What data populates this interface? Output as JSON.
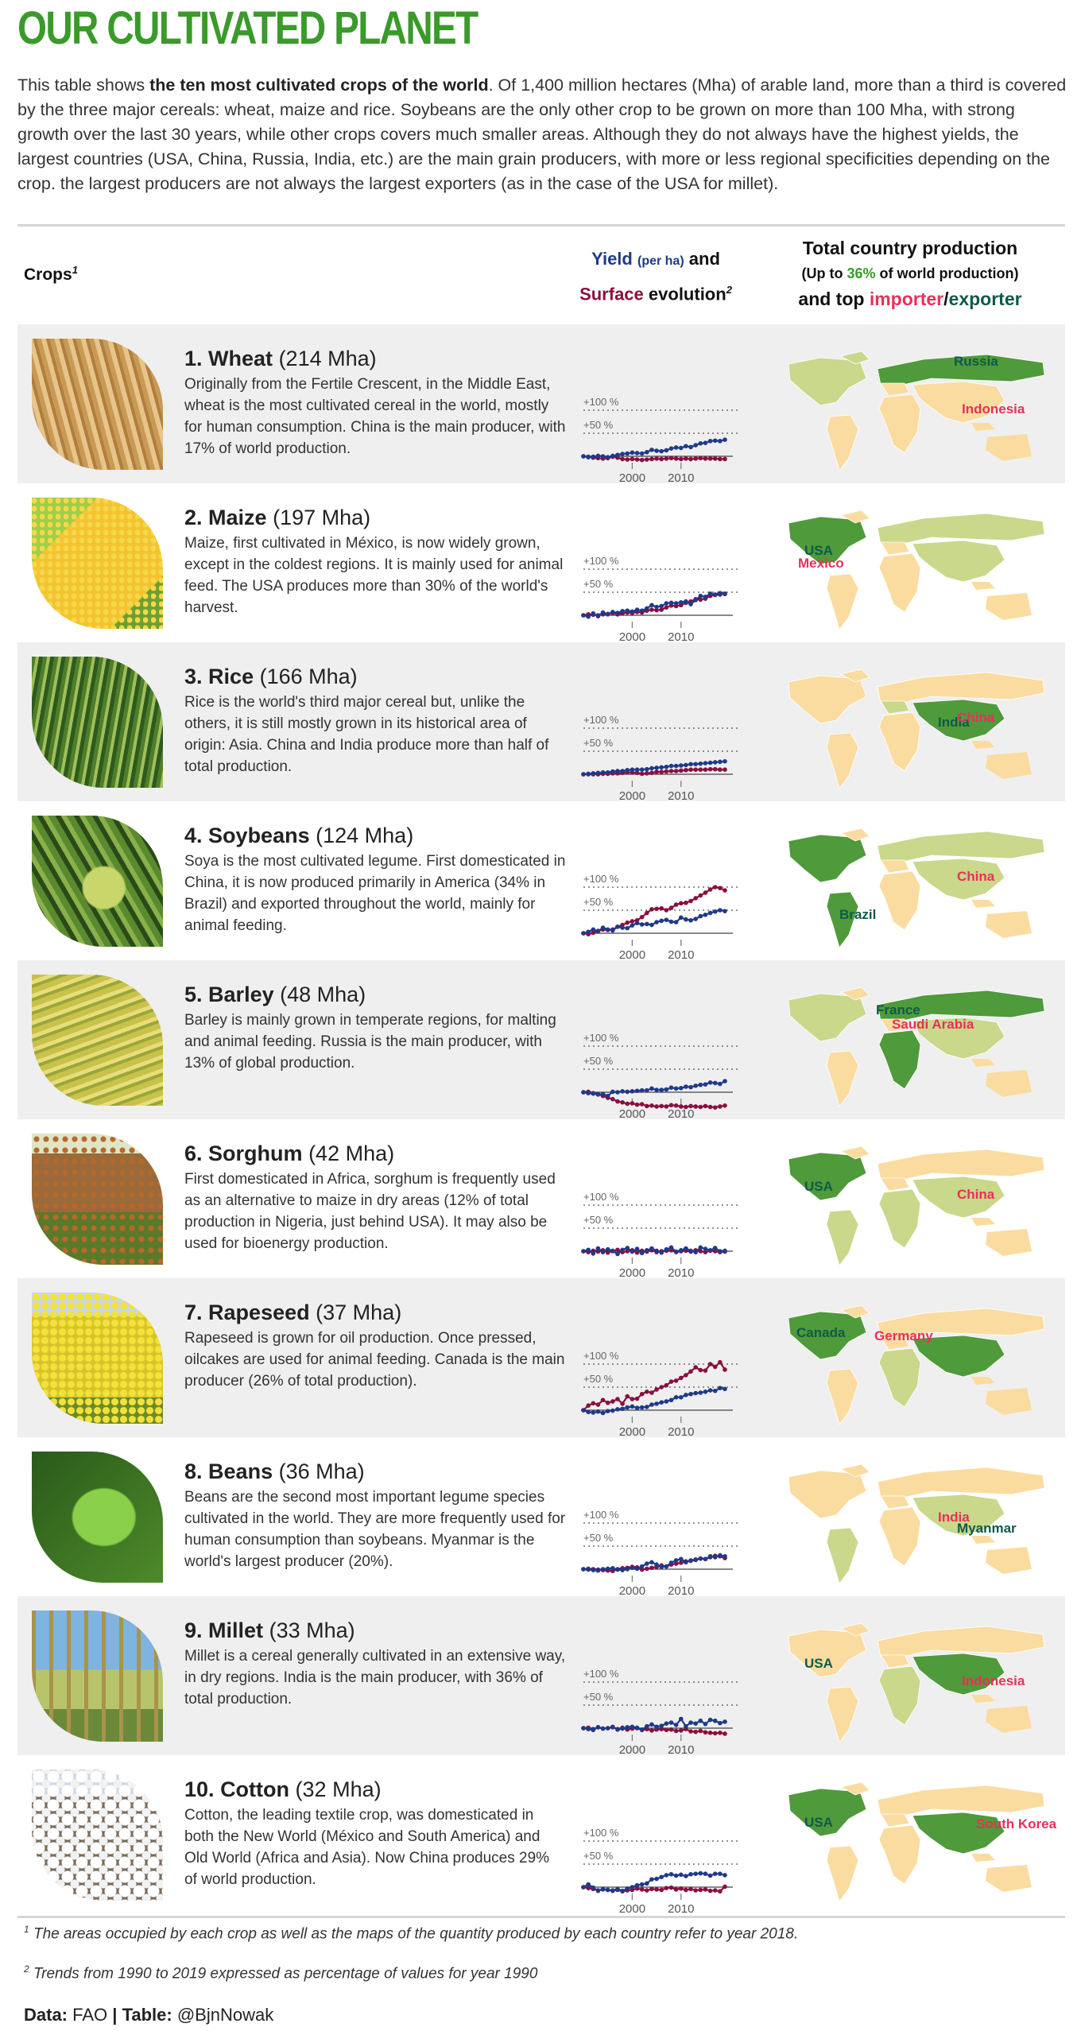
{
  "title": "OUR CULTIVATED PLANET",
  "intro": {
    "p1": "This table shows ",
    "bold": "the ten most cultivated crops of the world",
    "p2": ". Of 1,400 million hectares (Mha) of arable land, more than a third is covered by the three major cereals: wheat, maize and rice. Soybeans are the only other crop to be grown on more than 100 Mha, with strong growth over the last 30 years, while other crops covers much smaller areas. Although they do not always have the highest yields, the largest countries (USA, China, Russia, India, etc.) are the main grain producers, with more or less regional specificities depending on the crop. the largest producers are not always the largest exporters (as in the case of the USA for millet)."
  },
  "header": {
    "crops": "Crops",
    "crops_sup": "1",
    "yield_word": "Yield",
    "per_ha": "(per ha)",
    "and1": "and",
    "surface_word": "Surface",
    "evolution": "evolution",
    "evo_sup": "2",
    "prod_l1": "Total country production",
    "prod_l2a": "(Up to ",
    "prod_pct": "36%",
    "prod_l2b": " of world production)",
    "prod_l3a": "and top ",
    "importer": "importer",
    "slash": "/",
    "exporter": "exporter"
  },
  "colors": {
    "green_title": "#3a9a2a",
    "yield_line": "#1f3a8a",
    "surface_line": "#8a0f3f",
    "importer": "#e8305a",
    "exporter": "#0e5a4a",
    "map_base": "#fbdca0",
    "map_mid": "#c9d88a",
    "map_high": "#4f9a3a"
  },
  "crops": [
    {
      "rank": "1.",
      "name": "Wheat",
      "area": "(214 Mha)",
      "desc": "Originally from the Fertile Crescent, in the Middle East, wheat is the most cultivated cereal in the world, mostly for human consumption. China is the main producer, with 17% of world production.",
      "exporter": "Russia",
      "importer": "Indonesia",
      "image": "wheat-photo"
    },
    {
      "rank": "2.",
      "name": "Maize",
      "area": "(197 Mha)",
      "desc": "Maize, first cultivated in México, is now widely grown, except in the coldest regions. It is mainly used for animal feed. The USA produces more than 30% of the world's harvest.",
      "exporter": "USA",
      "importer": "Mexico",
      "image": "maize-photo"
    },
    {
      "rank": "3.",
      "name": "Rice",
      "area": "(166 Mha)",
      "desc": "Rice is the world's third major cereal but, unlike the others, it is still mostly grown in its historical area of origin: Asia. China and India produce more than half of total production.",
      "exporter": "India",
      "importer": "China",
      "image": "rice-photo"
    },
    {
      "rank": "4.",
      "name": "Soybeans",
      "area": "(124 Mha)",
      "desc": "Soya is the most cultivated legume. First domesticated in China, it is now produced primarily in America (34% in Brazil) and exported throughout the world, mainly for animal feeding.",
      "exporter": "Brazil",
      "importer": "China",
      "image": "soybean-photo"
    },
    {
      "rank": "5.",
      "name": "Barley",
      "area": "(48 Mha)",
      "desc": "Barley is mainly grown in temperate regions, for malting and animal feeding. Russia is the main producer, with 13% of global production.",
      "exporter": "France",
      "importer": "Saudi Arabia",
      "image": "barley-photo"
    },
    {
      "rank": "6.",
      "name": "Sorghum",
      "area": "(42 Mha)",
      "desc": "First domesticated in Africa, sorghum is frequently used as an alternative to maize in dry areas (12% of total production in Nigeria, just behind USA). It may also be used for bioenergy production.",
      "exporter": "USA",
      "importer": "China",
      "image": "sorghum-photo"
    },
    {
      "rank": "7.",
      "name": "Rapeseed",
      "area": "(37 Mha)",
      "desc": "Rapeseed is grown for oil production. Once pressed, oilcakes are used for animal feeding. Canada is the main producer (26% of total production).",
      "exporter": "Canada",
      "importer": "Germany",
      "image": "rapeseed-photo"
    },
    {
      "rank": "8.",
      "name": "Beans",
      "area": "(36 Mha)",
      "desc": "Beans are the second most important legume species cultivated in the world. They are more frequently used for human consumption than soybeans. Myanmar is the world's largest producer (20%).",
      "exporter": "Myanmar",
      "importer": "India",
      "image": "beans-photo"
    },
    {
      "rank": "9.",
      "name": "Millet",
      "area": "(33 Mha)",
      "desc": "Millet is a cereal generally cultivated in an extensive way, in dry regions. India is the main producer, with 36% of total production.",
      "exporter": "USA",
      "importer": "Indonesia",
      "image": "millet-photo"
    },
    {
      "rank": "10.",
      "name": "Cotton",
      "area": "(32 Mha)",
      "desc": "Cotton, the leading textile crop, was domesticated in both the New World (México and South America) and Old World (Africa and Asia). Now China produces 29% of world production.",
      "exporter": "USA",
      "importer": "South Korea",
      "image": "cotton-photo"
    }
  ],
  "chart_data": {
    "type": "line",
    "x": [
      1990,
      1991,
      1992,
      1993,
      1994,
      1995,
      1996,
      1997,
      1998,
      1999,
      2000,
      2001,
      2002,
      2003,
      2004,
      2005,
      2006,
      2007,
      2008,
      2009,
      2010,
      2011,
      2012,
      2013,
      2014,
      2015,
      2016,
      2017,
      2018,
      2019
    ],
    "x_ticks": [
      "2000",
      "2010"
    ],
    "y_ticks": [
      "+100 %",
      "+50 %"
    ],
    "ylim": [
      -20,
      110
    ],
    "panels": [
      {
        "crop": "Wheat",
        "yield": [
          0,
          -2,
          -1,
          1,
          0,
          -2,
          1,
          3,
          5,
          6,
          8,
          7,
          6,
          9,
          14,
          12,
          11,
          13,
          17,
          19,
          18,
          22,
          20,
          24,
          28,
          29,
          33,
          34,
          33,
          36
        ],
        "surface": [
          0,
          -1,
          -3,
          -4,
          -5,
          -4,
          -1,
          -3,
          -6,
          -7,
          -6,
          -7,
          -8,
          -7,
          -6,
          -5,
          -6,
          -5,
          -4,
          -5,
          -6,
          -5,
          -6,
          -5,
          -4,
          -5,
          -5,
          -5,
          -6,
          -6
        ]
      },
      {
        "crop": "Maize",
        "yield": [
          0,
          -3,
          4,
          -2,
          6,
          2,
          7,
          5,
          9,
          10,
          8,
          12,
          10,
          15,
          22,
          18,
          20,
          26,
          27,
          26,
          28,
          30,
          24,
          33,
          42,
          40,
          47,
          45,
          48,
          46
        ],
        "surface": [
          0,
          2,
          1,
          0,
          2,
          3,
          5,
          2,
          4,
          6,
          5,
          7,
          6,
          10,
          12,
          11,
          12,
          17,
          21,
          20,
          22,
          27,
          30,
          35,
          34,
          36,
          42,
          44,
          45,
          47
        ]
      },
      {
        "crop": "Rice",
        "yield": [
          0,
          1,
          2,
          3,
          4,
          4,
          6,
          7,
          7,
          9,
          10,
          10,
          10,
          11,
          13,
          14,
          15,
          16,
          18,
          18,
          19,
          20,
          22,
          22,
          23,
          24,
          25,
          26,
          27,
          28
        ],
        "surface": [
          0,
          0,
          0,
          0,
          1,
          1,
          2,
          2,
          3,
          4,
          4,
          3,
          1,
          2,
          3,
          5,
          5,
          6,
          7,
          7,
          8,
          9,
          10,
          10,
          10,
          10,
          11,
          11,
          10,
          10
        ]
      },
      {
        "crop": "Soybeans",
        "yield": [
          0,
          3,
          8,
          4,
          12,
          8,
          6,
          14,
          12,
          11,
          17,
          22,
          19,
          20,
          18,
          24,
          27,
          29,
          25,
          24,
          34,
          30,
          28,
          31,
          37,
          40,
          44,
          47,
          50,
          48
        ],
        "surface": [
          0,
          -2,
          1,
          5,
          8,
          7,
          8,
          14,
          18,
          23,
          26,
          28,
          35,
          44,
          52,
          53,
          54,
          50,
          55,
          62,
          65,
          66,
          70,
          76,
          82,
          88,
          95,
          100,
          98,
          93
        ]
      },
      {
        "crop": "Barley",
        "yield": [
          0,
          -2,
          -3,
          -5,
          -4,
          -8,
          1,
          0,
          2,
          1,
          2,
          3,
          4,
          4,
          8,
          5,
          5,
          6,
          10,
          8,
          9,
          12,
          11,
          14,
          16,
          17,
          21,
          20,
          18,
          24
        ],
        "surface": [
          0,
          1,
          -2,
          -4,
          -8,
          -12,
          -15,
          -20,
          -22,
          -25,
          -24,
          -27,
          -26,
          -30,
          -29,
          -31,
          -30,
          -31,
          -28,
          -29,
          -31,
          -32,
          -30,
          -31,
          -32,
          -30,
          -32,
          -33,
          -31,
          -29
        ]
      },
      {
        "crop": "Sorghum",
        "yield": [
          0,
          3,
          -5,
          6,
          -2,
          4,
          1,
          -6,
          3,
          7,
          -1,
          5,
          -4,
          2,
          6,
          1,
          -3,
          4,
          8,
          -1,
          2,
          6,
          1,
          -2,
          8,
          5,
          2,
          7,
          0,
          1
        ],
        "surface": [
          0,
          -2,
          1,
          -1,
          2,
          -3,
          0,
          3,
          -2,
          0,
          2,
          -3,
          1,
          -1,
          2,
          -2,
          0,
          1,
          2,
          -2,
          0,
          1,
          -1,
          2,
          0,
          -2,
          1,
          0,
          -2,
          -1
        ]
      },
      {
        "crop": "Rapeseed",
        "yield": [
          0,
          -4,
          -5,
          -3,
          -6,
          -2,
          -1,
          2,
          3,
          6,
          8,
          5,
          6,
          7,
          12,
          14,
          17,
          19,
          22,
          28,
          28,
          33,
          35,
          37,
          38,
          40,
          43,
          42,
          48,
          46
        ],
        "surface": [
          0,
          10,
          15,
          12,
          22,
          16,
          19,
          24,
          14,
          30,
          24,
          25,
          35,
          40,
          38,
          45,
          50,
          54,
          62,
          64,
          70,
          76,
          84,
          93,
          87,
          86,
          100,
          94,
          104,
          88
        ]
      },
      {
        "crop": "Beans",
        "yield": [
          0,
          -1,
          -2,
          -3,
          0,
          1,
          2,
          -1,
          -2,
          0,
          3,
          1,
          6,
          12,
          15,
          10,
          5,
          6,
          14,
          19,
          22,
          15,
          19,
          21,
          23,
          22,
          28,
          26,
          30,
          28
        ],
        "surface": [
          0,
          1,
          0,
          -1,
          -2,
          -3,
          -4,
          0,
          2,
          3,
          5,
          4,
          -1,
          1,
          3,
          5,
          8,
          6,
          10,
          12,
          14,
          17,
          18,
          20,
          23,
          22,
          26,
          29,
          28,
          24
        ]
      },
      {
        "crop": "Millet",
        "yield": [
          0,
          -2,
          -4,
          2,
          -1,
          0,
          3,
          -3,
          -1,
          2,
          3,
          1,
          -3,
          4,
          8,
          3,
          5,
          10,
          12,
          7,
          20,
          4,
          12,
          10,
          16,
          9,
          18,
          16,
          11,
          14
        ],
        "surface": [
          0,
          1,
          -2,
          2,
          -1,
          0,
          2,
          -2,
          1,
          -3,
          -1,
          0,
          -4,
          -2,
          -5,
          -3,
          -2,
          -4,
          -3,
          -6,
          -5,
          -2,
          -7,
          -8,
          -6,
          -9,
          -10,
          -11,
          -10,
          -12
        ]
      },
      {
        "crop": "Cotton",
        "yield": [
          0,
          6,
          -1,
          -8,
          -4,
          -6,
          -7,
          -4,
          -8,
          -3,
          0,
          4,
          6,
          8,
          17,
          18,
          22,
          26,
          28,
          25,
          27,
          24,
          28,
          29,
          30,
          29,
          25,
          29,
          29,
          26
        ],
        "surface": [
          0,
          -2,
          -4,
          -7,
          -5,
          -6,
          -8,
          -6,
          -9,
          -7,
          -6,
          -3,
          -5,
          -7,
          -4,
          -5,
          -6,
          -2,
          -1,
          -5,
          -3,
          -6,
          -4,
          -7,
          -6,
          -5,
          -8,
          -7,
          -9,
          1
        ]
      }
    ]
  },
  "footnotes": {
    "n1_sup": "1",
    "n1": "The areas occupied by each crop as well as the maps of the quantity produced by each country refer to year 2018.",
    "n2_sup": "2",
    "n2": "Trends from 1990 to 2019 expressed as percentage of values for year 1990"
  },
  "credits": {
    "data_label": "Data:",
    "data_value": "FAO",
    "sep": "|",
    "table_label": "Table:",
    "table_value": "@BjnNowak"
  }
}
